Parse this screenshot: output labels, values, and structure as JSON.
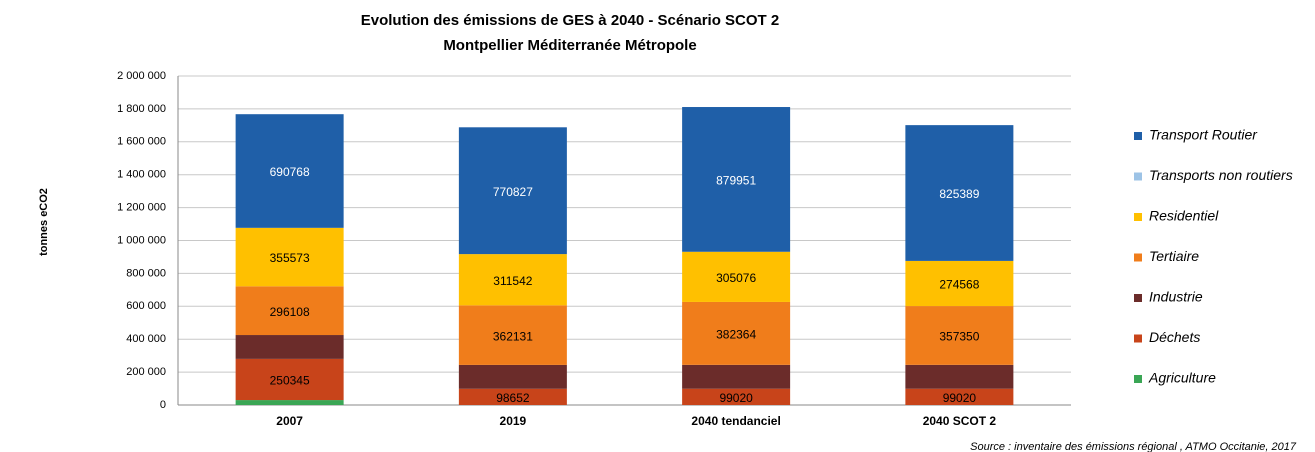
{
  "chart_data": {
    "type": "stacked_bar",
    "title": "Evolution des émissions de GES à 2040 - Scénario SCOT 2",
    "subtitle": "Montpellier Méditerranée Métropole",
    "y_label": "tonnes eCO2",
    "source": "Source : inventaire des émissions régional , ATMO Occitanie, 2017",
    "categories": [
      "2007",
      "2019",
      "2040 tendanciel",
      "2040 SCOT 2"
    ],
    "series": [
      {
        "name": "Agriculture",
        "color": "#3aa655",
        "values": [
          30000,
          0,
          0,
          0
        ],
        "value_labels": [
          null,
          null,
          null,
          null
        ]
      },
      {
        "name": "Déchets",
        "color": "#c8441a",
        "values": [
          250345,
          98652,
          99020,
          99020
        ],
        "value_labels": [
          "250345",
          "98652",
          "99020",
          "99020"
        ]
      },
      {
        "name": "Industrie",
        "color": "#6b2c2a",
        "values": [
          145000,
          145000,
          145000,
          145000
        ],
        "value_labels": [
          null,
          null,
          null,
          null
        ]
      },
      {
        "name": "Tertiaire",
        "color": "#f07d1b",
        "values": [
          296108,
          362131,
          382364,
          357350
        ],
        "value_labels": [
          "296108",
          "362131",
          "382364",
          "357350"
        ]
      },
      {
        "name": "Residentiel",
        "color": "#ffc000",
        "values": [
          355573,
          311542,
          305076,
          274568
        ],
        "value_labels": [
          "355573",
          "311542",
          "305076",
          "274568"
        ]
      },
      {
        "name": "Transports non routiers",
        "color": "#9dc3e6",
        "values": [
          0,
          0,
          0,
          0
        ],
        "value_labels": [
          null,
          null,
          null,
          null
        ]
      },
      {
        "name": "Transport Routier",
        "color": "#1f5fa8",
        "values": [
          690768,
          770827,
          879951,
          825389
        ],
        "value_labels": [
          "690768",
          "770827",
          "879951",
          "825389"
        ]
      }
    ],
    "ylim": [
      0,
      2000000
    ],
    "yticks": [
      0,
      {
        "value": 200000,
        "label": "200 000"
      },
      {
        "value": 400000,
        "label": "400 000"
      },
      {
        "value": 600000,
        "label": "600 000"
      },
      {
        "value": 800000,
        "label": "800 000"
      },
      {
        "value": 1000000,
        "label": "1 000 000"
      },
      {
        "value": 1200000,
        "label": "1 200 000"
      },
      {
        "value": 1400000,
        "label": "1 400 000"
      },
      {
        "value": 1600000,
        "label": "1 600 000"
      },
      {
        "value": 1800000,
        "label": "1 800 000"
      },
      {
        "value": 2000000,
        "label": "2 000 000"
      }
    ],
    "grid": true,
    "legend": "right"
  }
}
